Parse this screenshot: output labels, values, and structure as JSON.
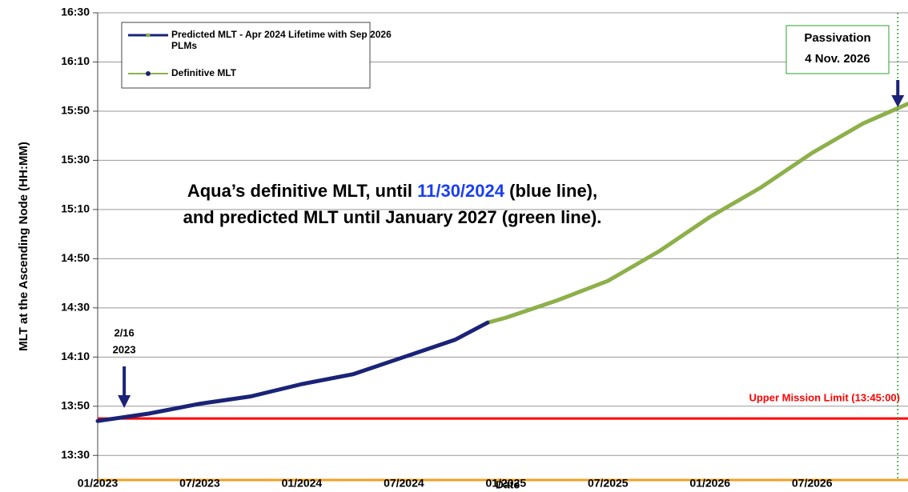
{
  "chart_data": {
    "type": "line",
    "xlabel": "Date",
    "ylabel": "MLT at the Ascending Node (HH:MM)",
    "xlim": [
      2023,
      2026.97
    ],
    "xticks": [
      {
        "value": 2023,
        "label": "01/2023"
      },
      {
        "value": 2023.5,
        "label": "07/2023"
      },
      {
        "value": 2024,
        "label": "01/2024"
      },
      {
        "value": 2024.5,
        "label": "07/2024"
      },
      {
        "value": 2025,
        "label": "01/2025"
      },
      {
        "value": 2025.5,
        "label": "07/2025"
      },
      {
        "value": 2026,
        "label": "01/2026"
      },
      {
        "value": 2026.5,
        "label": "07/2026"
      }
    ],
    "ylim": [
      800,
      990
    ],
    "yticks": [
      {
        "value": 810,
        "label": "13:30"
      },
      {
        "value": 830,
        "label": "13:50"
      },
      {
        "value": 850,
        "label": "14:10"
      },
      {
        "value": 870,
        "label": "14:30"
      },
      {
        "value": 890,
        "label": "14:50"
      },
      {
        "value": 910,
        "label": "15:10"
      },
      {
        "value": 930,
        "label": "15:30"
      },
      {
        "value": 950,
        "label": "15:50"
      },
      {
        "value": 970,
        "label": "16:10"
      },
      {
        "value": 990,
        "label": "16:30"
      }
    ],
    "grid": true,
    "series": [
      {
        "name": "Predicted MLT - Apr 2024 Lifetime with Sep 2026 PLMs",
        "color": "#8db04a",
        "x": [
          2024.91,
          2025.0,
          2025.25,
          2025.5,
          2025.75,
          2026.0,
          2026.25,
          2026.5,
          2026.75,
          2026.97
        ],
        "values": [
          864,
          866,
          873,
          881,
          893,
          907,
          919,
          933,
          945,
          953
        ]
      },
      {
        "name": "Definitive MLT",
        "color": "#1a2377",
        "x": [
          2023.0,
          2023.25,
          2023.5,
          2023.75,
          2024.0,
          2024.25,
          2024.5,
          2024.75,
          2024.91
        ],
        "values": [
          824,
          827,
          831,
          834,
          839,
          843,
          850,
          857,
          864
        ]
      }
    ],
    "limit": {
      "value": 825,
      "label": "Upper Mission Limit (13:45:00)",
      "color": "#ff0000"
    },
    "annotations": {
      "text_line1_a": "Aqua’s definitive MLT, until ",
      "text_line1_b": "11/30/2024",
      "text_line1_c": " (blue line),",
      "text_line2": "and predicted MLT until January 2027 (green line).",
      "start_date": "2/16",
      "start_year": "2023",
      "passivation": "Passivation",
      "passivation_date": "4 Nov. 2026",
      "start_x": 2023.13,
      "passivation_x": 2026.92
    }
  }
}
